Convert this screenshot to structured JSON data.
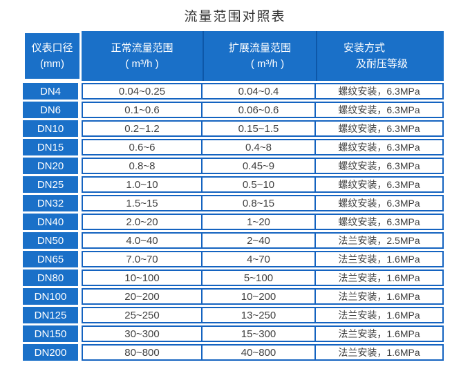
{
  "title": "流量范围对照表",
  "colors": {
    "primary_blue": "#1a70c8",
    "cell_border_blue": "#1463c0",
    "header_divider_blue": "#0d57a8",
    "title_text": "#333333",
    "cell_text": "#404040",
    "header_text": "#ffffff"
  },
  "header": {
    "diameter_line1": "仪表口径",
    "diameter_line2": "(mm)",
    "normal_line1": "正常流量范围",
    "normal_line2": "( m³/h )",
    "extended_line1": "扩展流量范围",
    "extended_line2": "( m³/h )",
    "install_line1": "安装方式",
    "install_line2": "及耐压等级"
  },
  "chart_data": {
    "type": "table",
    "title": "流量范围对照表",
    "columns": [
      "仪表口径(mm)",
      "正常流量范围( m³/h )",
      "扩展流量范围( m³/h )",
      "安装方式及耐压等级"
    ],
    "rows": [
      [
        "DN4",
        "0.04~0.25",
        "0.04~0.4",
        "螺纹安装，6.3MPa"
      ],
      [
        "DN6",
        "0.1~0.6",
        "0.06~0.6",
        "螺纹安装，6.3MPa"
      ],
      [
        "DN10",
        "0.2~1.2",
        "0.15~1.5",
        "螺纹安装，6.3MPa"
      ],
      [
        "DN15",
        "0.6~6",
        "0.4~8",
        "螺纹安装，6.3MPa"
      ],
      [
        "DN20",
        "0.8~8",
        "0.45~9",
        "螺纹安装，6.3MPa"
      ],
      [
        "DN25",
        "1.0~10",
        "0.5~10",
        "螺纹安装，6.3MPa"
      ],
      [
        "DN32",
        "1.5~15",
        "0.8~15",
        "螺纹安装，6.3MPa"
      ],
      [
        "DN40",
        "2.0~20",
        "1~20",
        "螺纹安装，6.3MPa"
      ],
      [
        "DN50",
        "4.0~40",
        "2~40",
        "法兰安装，2.5MPa"
      ],
      [
        "DN65",
        "7.0~70",
        "4~70",
        "法兰安装，1.6MPa"
      ],
      [
        "DN80",
        "10~100",
        "5~100",
        "法兰安装，1.6MPa"
      ],
      [
        "DN100",
        "20~200",
        "10~200",
        "法兰安装，1.6MPa"
      ],
      [
        "DN125",
        "25~250",
        "13~250",
        "法兰安装，1.6MPa"
      ],
      [
        "DN150",
        "30~300",
        "15~300",
        "法兰安装，1.6MPa"
      ],
      [
        "DN200",
        "80~800",
        "40~800",
        "法兰安装，1.6MPa"
      ]
    ]
  }
}
